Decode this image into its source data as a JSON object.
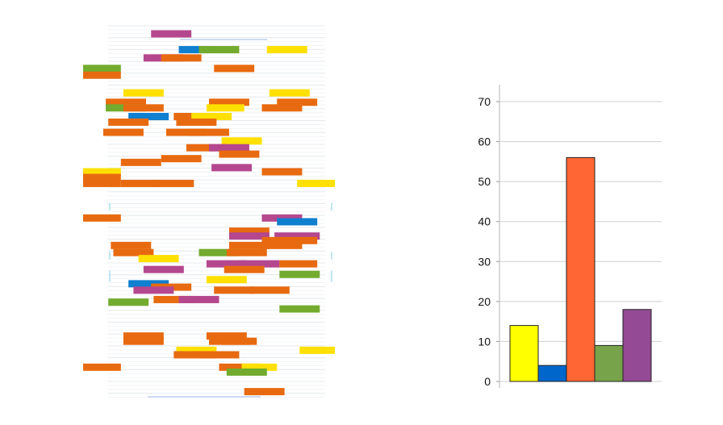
{
  "chart_data": [
    {
      "type": "table",
      "colors": {
        "magenta": "#b5478e",
        "blue": "#0f7fcf",
        "green": "#72ab2e",
        "yellow": "#ffe000",
        "orange": "#e86a10"
      },
      "rows": [
        {
          "y": 0.03,
          "segs": [
            [
              0.27,
              0.43,
              "magenta"
            ]
          ]
        },
        {
          "y": 0.072,
          "segs": [
            [
              0.38,
              0.5,
              "blue"
            ],
            [
              0.46,
              0.62,
              "green"
            ],
            [
              0.73,
              0.89,
              "yellow"
            ]
          ]
        },
        {
          "y": 0.094,
          "segs": [
            [
              0.24,
              0.4,
              "magenta"
            ],
            [
              0.31,
              0.47,
              "orange"
            ]
          ]
        },
        {
          "y": 0.122,
          "segs": [
            [
              0.0,
              0.15,
              "green"
            ],
            [
              0.52,
              0.68,
              "orange"
            ]
          ]
        },
        {
          "y": 0.14,
          "segs": [
            [
              0.0,
              0.15,
              "orange"
            ]
          ]
        },
        {
          "y": 0.187,
          "segs": [
            [
              0.16,
              0.32,
              "yellow"
            ],
            [
              0.74,
              0.9,
              "yellow"
            ]
          ]
        },
        {
          "y": 0.212,
          "segs": [
            [
              0.09,
              0.25,
              "orange"
            ],
            [
              0.5,
              0.66,
              "orange"
            ],
            [
              0.77,
              0.93,
              "orange"
            ]
          ]
        },
        {
          "y": 0.227,
          "segs": [
            [
              0.09,
              0.25,
              "green"
            ],
            [
              0.16,
              0.32,
              "orange"
            ],
            [
              0.49,
              0.64,
              "yellow"
            ],
            [
              0.71,
              0.87,
              "orange"
            ]
          ]
        },
        {
          "y": 0.25,
          "segs": [
            [
              0.18,
              0.34,
              "blue"
            ],
            [
              0.36,
              0.52,
              "orange"
            ],
            [
              0.43,
              0.59,
              "yellow"
            ]
          ]
        },
        {
          "y": 0.265,
          "segs": [
            [
              0.1,
              0.26,
              "orange"
            ],
            [
              0.37,
              0.53,
              "orange"
            ]
          ]
        },
        {
          "y": 0.292,
          "segs": [
            [
              0.08,
              0.24,
              "orange"
            ],
            [
              0.33,
              0.49,
              "orange"
            ],
            [
              0.42,
              0.58,
              "orange"
            ]
          ]
        },
        {
          "y": 0.315,
          "segs": [
            [
              0.55,
              0.71,
              "yellow"
            ]
          ]
        },
        {
          "y": 0.333,
          "segs": [
            [
              0.41,
              0.57,
              "orange"
            ],
            [
              0.5,
              0.66,
              "magenta"
            ]
          ]
        },
        {
          "y": 0.35,
          "segs": [
            [
              0.54,
              0.7,
              "orange"
            ]
          ]
        },
        {
          "y": 0.362,
          "segs": [
            [
              0.31,
              0.47,
              "orange"
            ]
          ]
        },
        {
          "y": 0.372,
          "segs": [
            [
              0.15,
              0.31,
              "orange"
            ]
          ]
        },
        {
          "y": 0.386,
          "segs": [
            [
              0.51,
              0.67,
              "magenta"
            ]
          ]
        },
        {
          "y": 0.397,
          "segs": [
            [
              0.0,
              0.15,
              "yellow"
            ],
            [
              0.71,
              0.87,
              "orange"
            ]
          ]
        },
        {
          "y": 0.412,
          "segs": [
            [
              0.0,
              0.15,
              "orange"
            ]
          ]
        },
        {
          "y": 0.428,
          "segs": [
            [
              0.0,
              0.15,
              "orange"
            ],
            [
              0.15,
              0.31,
              "orange"
            ],
            [
              0.28,
              0.44,
              "orange"
            ],
            [
              0.85,
              1.0,
              "yellow"
            ]
          ]
        },
        {
          "y": 0.52,
          "segs": [
            [
              0.0,
              0.15,
              "orange"
            ],
            [
              0.71,
              0.87,
              "magenta"
            ]
          ]
        },
        {
          "y": 0.53,
          "segs": [
            [
              0.77,
              0.93,
              "blue"
            ]
          ]
        },
        {
          "y": 0.555,
          "segs": [
            [
              0.58,
              0.74,
              "orange"
            ]
          ]
        },
        {
          "y": 0.568,
          "segs": [
            [
              0.58,
              0.74,
              "magenta"
            ],
            [
              0.76,
              0.94,
              "magenta"
            ]
          ]
        },
        {
          "y": 0.58,
          "segs": [
            [
              0.71,
              0.93,
              "orange"
            ]
          ]
        },
        {
          "y": 0.593,
          "segs": [
            [
              0.11,
              0.27,
              "orange"
            ],
            [
              0.58,
              0.74,
              "orange"
            ],
            [
              0.71,
              0.87,
              "orange"
            ]
          ]
        },
        {
          "y": 0.612,
          "segs": [
            [
              0.12,
              0.28,
              "orange"
            ],
            [
              0.46,
              0.62,
              "green"
            ],
            [
              0.57,
              0.73,
              "orange"
            ]
          ]
        },
        {
          "y": 0.628,
          "segs": [
            [
              0.22,
              0.38,
              "yellow"
            ]
          ]
        },
        {
          "y": 0.642,
          "segs": [
            [
              0.49,
              0.65,
              "magenta"
            ],
            [
              0.62,
              0.78,
              "magenta"
            ],
            [
              0.78,
              0.93,
              "orange"
            ]
          ]
        },
        {
          "y": 0.657,
          "segs": [
            [
              0.24,
              0.4,
              "magenta"
            ],
            [
              0.56,
              0.72,
              "orange"
            ]
          ]
        },
        {
          "y": 0.67,
          "segs": [
            [
              0.78,
              0.94,
              "green"
            ]
          ]
        },
        {
          "y": 0.684,
          "segs": [
            [
              0.49,
              0.65,
              "yellow"
            ]
          ]
        },
        {
          "y": 0.695,
          "segs": [
            [
              0.18,
              0.34,
              "blue"
            ]
          ]
        },
        {
          "y": 0.704,
          "segs": [
            [
              0.27,
              0.43,
              "orange"
            ]
          ]
        },
        {
          "y": 0.712,
          "segs": [
            [
              0.2,
              0.36,
              "magenta"
            ],
            [
              0.52,
              0.68,
              "orange"
            ],
            [
              0.66,
              0.82,
              "orange"
            ]
          ]
        },
        {
          "y": 0.737,
          "segs": [
            [
              0.28,
              0.44,
              "orange"
            ],
            [
              0.38,
              0.54,
              "magenta"
            ]
          ]
        },
        {
          "y": 0.744,
          "segs": [
            [
              0.1,
              0.26,
              "green"
            ]
          ]
        },
        {
          "y": 0.762,
          "segs": [
            [
              0.78,
              0.94,
              "green"
            ]
          ]
        },
        {
          "y": 0.834,
          "segs": [
            [
              0.16,
              0.32,
              "orange"
            ],
            [
              0.49,
              0.65,
              "orange"
            ]
          ]
        },
        {
          "y": 0.848,
          "segs": [
            [
              0.16,
              0.32,
              "orange"
            ],
            [
              0.5,
              0.66,
              "orange"
            ],
            [
              0.55,
              0.69,
              "orange"
            ]
          ]
        },
        {
          "y": 0.872,
          "segs": [
            [
              0.37,
              0.53,
              "yellow"
            ],
            [
              0.86,
              1.0,
              "yellow"
            ]
          ]
        },
        {
          "y": 0.884,
          "segs": [
            [
              0.36,
              0.52,
              "orange"
            ],
            [
              0.46,
              0.62,
              "orange"
            ]
          ]
        },
        {
          "y": 0.917,
          "segs": [
            [
              0.0,
              0.15,
              "orange"
            ],
            [
              0.54,
              0.7,
              "orange"
            ],
            [
              0.63,
              0.77,
              "yellow"
            ]
          ]
        },
        {
          "y": 0.93,
          "segs": [
            [
              0.57,
              0.73,
              "green"
            ]
          ]
        },
        {
          "y": 0.982,
          "segs": [
            [
              0.64,
              0.8,
              "orange"
            ]
          ]
        }
      ]
    },
    {
      "type": "bar",
      "categories": [
        "",
        "",
        "",
        "",
        ""
      ],
      "values": [
        14,
        4,
        56,
        9,
        18
      ],
      "colors": [
        "#ffff00",
        "#0066cc",
        "#ff6633",
        "#77a34a",
        "#944a94"
      ],
      "yticks": [
        "0",
        "10",
        "20",
        "30",
        "40",
        "50",
        "60",
        "70"
      ],
      "ylim": [
        0,
        70
      ],
      "grid": true,
      "title": "",
      "xlabel": "",
      "ylabel": ""
    }
  ]
}
